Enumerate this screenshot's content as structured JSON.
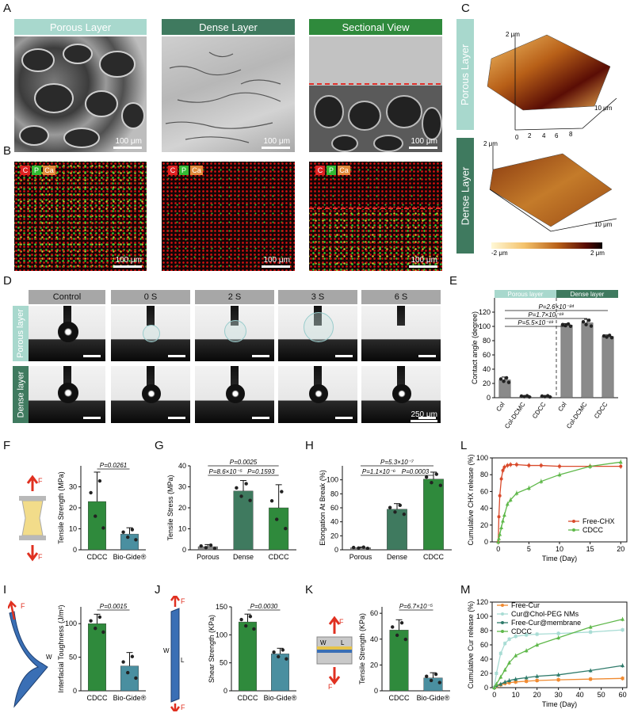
{
  "panel_letters": [
    "A",
    "B",
    "C",
    "D",
    "E",
    "F",
    "G",
    "H",
    "I",
    "J",
    "K",
    "L",
    "M"
  ],
  "A": {
    "headers": [
      "Porous Layer",
      "Dense Layer",
      "Sectional View"
    ],
    "scale": "100 μm"
  },
  "B": {
    "elements": [
      "C",
      "P",
      "Ca"
    ],
    "scale": "100 μm"
  },
  "C": {
    "labels": [
      "Porous Layer",
      "Dense Layer"
    ],
    "ticks_xy": [
      "0",
      "2",
      "4",
      "6",
      "8",
      "10 μm"
    ],
    "z_top": "2 μm",
    "z_bottom": "-2 μm",
    "colorbar_min": "-2 μm",
    "colorbar_max": "2 μm",
    "colors": [
      "#fff8d6",
      "#f4c26a",
      "#b86018",
      "#5a0d05",
      "#0a0000"
    ]
  },
  "D": {
    "columns": [
      "Control",
      "0 S",
      "2 S",
      "3 S",
      "6 S"
    ],
    "rows": [
      "Porous layer",
      "Dense layer"
    ],
    "scale": "250 μm"
  },
  "colors": {
    "porous": "#a8d8cd",
    "dense": "#3f7a5f",
    "section": "#2f8a3c",
    "bar_gray": "#8a8a8a",
    "bar_green": "#2f8a3c",
    "bar_teal": "#4a8fa0",
    "bar_dense": "#3f7a5f",
    "red": "#d94a2b"
  },
  "chart_data": [
    {
      "panel": "E",
      "type": "bar",
      "ylabel": "Contact angle (degree)",
      "ylim": [
        0,
        140
      ],
      "yticks": [
        0,
        20,
        40,
        60,
        80,
        100,
        120
      ],
      "categories": [
        "Col",
        "Col-DCMC",
        "CDCC",
        "Col",
        "Col-DCMC",
        "CDCC"
      ],
      "values": [
        25,
        2,
        2,
        102,
        105,
        86
      ],
      "groups": [
        "Porous layer",
        "Dense layer"
      ],
      "pvalues": [
        "P=5.5×10⁻¹⁹",
        "P=1.7×10⁻¹⁹",
        "P=2.6×10⁻²⁴"
      ]
    },
    {
      "panel": "F",
      "type": "bar",
      "ylabel": "Tensile Strength (MPa)",
      "ylim": [
        0,
        40
      ],
      "yticks": [
        0,
        10,
        20,
        30
      ],
      "categories": [
        "CDCC",
        "Bio-Gide®"
      ],
      "values": [
        23,
        7.5
      ],
      "pvalues": [
        "P=0.0261"
      ],
      "force": "F"
    },
    {
      "panel": "G",
      "type": "bar",
      "ylabel": "Tensile Stress (MPa)",
      "ylim": [
        0,
        40
      ],
      "yticks": [
        0,
        10,
        20,
        30,
        40
      ],
      "categories": [
        "Porous",
        "Dense",
        "CDCC"
      ],
      "values": [
        1.5,
        28,
        20
      ],
      "pvalues": [
        "P=0.0025",
        "P=8.6×10⁻⁵",
        "P=0.1593"
      ]
    },
    {
      "panel": "H",
      "type": "bar",
      "ylabel": "Elongation At Break (%)",
      "ylim": [
        0,
        120
      ],
      "yticks": [
        0,
        20,
        40,
        60,
        80,
        100
      ],
      "categories": [
        "Porous",
        "Dense",
        "CDCC"
      ],
      "values": [
        3,
        58,
        101
      ],
      "pvalues": [
        "P=5.3×10⁻⁷",
        "P=1.1×10⁻⁶",
        "P=0.0003"
      ]
    },
    {
      "panel": "I",
      "type": "bar",
      "ylabel": "Interfacial Toughness (J/m²)",
      "ylim": [
        0,
        125
      ],
      "yticks": [
        0,
        50,
        100
      ],
      "categories": [
        "CDCC",
        "Bio-Gide®"
      ],
      "values": [
        100,
        37
      ],
      "pvalues": [
        "P=0.0015"
      ],
      "labels": [
        "F",
        "W"
      ]
    },
    {
      "panel": "J",
      "type": "bar",
      "ylabel": "Shear Strength (KPa)",
      "ylim": [
        0,
        150
      ],
      "yticks": [
        0,
        50,
        100,
        150
      ],
      "categories": [
        "CDCC",
        "Bio-Gide®"
      ],
      "values": [
        123,
        66
      ],
      "pvalues": [
        "P=0.0030"
      ],
      "labels": [
        "F",
        "W",
        "L",
        "F"
      ]
    },
    {
      "panel": "K",
      "type": "bar",
      "ylabel": "Tensile Strength (KPa)",
      "ylim": [
        0,
        65
      ],
      "yticks": [
        0,
        20,
        40,
        60
      ],
      "categories": [
        "CDCC",
        "Bio-Gide®"
      ],
      "values": [
        47,
        10
      ],
      "pvalues": [
        "P=6.7×10⁻⁵"
      ],
      "labels": [
        "F",
        "W",
        "L",
        "F"
      ]
    },
    {
      "panel": "L",
      "type": "line",
      "xlabel": "Time (Day)",
      "ylabel": "Cumulative CHX release (%)",
      "xlim": [
        -1,
        21
      ],
      "ylim": [
        0,
        100
      ],
      "xticks": [
        0,
        5,
        10,
        15,
        20
      ],
      "yticks": [
        0,
        20,
        40,
        60,
        80,
        100
      ],
      "series": [
        {
          "name": "Free-CHX",
          "color": "#d94a2b",
          "x": [
            0,
            0.1,
            0.25,
            0.5,
            0.75,
            1,
            1.5,
            2,
            3,
            5,
            7,
            10,
            15,
            20
          ],
          "y": [
            0,
            30,
            55,
            75,
            85,
            89,
            91,
            92,
            92,
            91,
            91,
            90,
            90,
            90
          ]
        },
        {
          "name": "CDCC",
          "color": "#5fb84a",
          "x": [
            0,
            0.1,
            0.25,
            0.5,
            0.75,
            1,
            1.5,
            2,
            3,
            5,
            7,
            10,
            15,
            20
          ],
          "y": [
            0,
            4,
            9,
            17,
            25,
            32,
            45,
            50,
            58,
            64,
            72,
            80,
            90,
            95
          ]
        }
      ]
    },
    {
      "panel": "M",
      "type": "line",
      "xlabel": "Time (Day)",
      "ylabel": "Cumulative Cur release (%)",
      "xlim": [
        -1,
        62
      ],
      "ylim": [
        0,
        120
      ],
      "xticks": [
        0,
        10,
        20,
        30,
        40,
        50,
        60
      ],
      "yticks": [
        0,
        20,
        40,
        60,
        80,
        100,
        120
      ],
      "series": [
        {
          "name": "Free-Cur",
          "color": "#f08a30",
          "x": [
            0,
            1,
            3,
            5,
            7,
            10,
            15,
            20,
            30,
            45,
            60
          ],
          "y": [
            0,
            2,
            4,
            6,
            7,
            8,
            9,
            10,
            11,
            12,
            13
          ]
        },
        {
          "name": "Cur@Chol-PEG NMs",
          "color": "#a8dcd4",
          "x": [
            0,
            1,
            3,
            5,
            7,
            10,
            15,
            20,
            30,
            45,
            60
          ],
          "y": [
            0,
            20,
            48,
            62,
            68,
            72,
            74,
            75,
            76,
            78,
            81
          ]
        },
        {
          "name": "Free-Cur@membrane",
          "color": "#2e7a6a",
          "x": [
            0,
            1,
            3,
            5,
            7,
            10,
            15,
            20,
            30,
            45,
            60
          ],
          "y": [
            0,
            3,
            5,
            8,
            10,
            12,
            14,
            16,
            18,
            24,
            31
          ]
        },
        {
          "name": "CDCC",
          "color": "#5fb84a",
          "x": [
            0,
            1,
            3,
            5,
            7,
            10,
            15,
            20,
            30,
            45,
            60
          ],
          "y": [
            0,
            5,
            15,
            25,
            35,
            45,
            52,
            60,
            70,
            85,
            96
          ]
        }
      ]
    }
  ]
}
